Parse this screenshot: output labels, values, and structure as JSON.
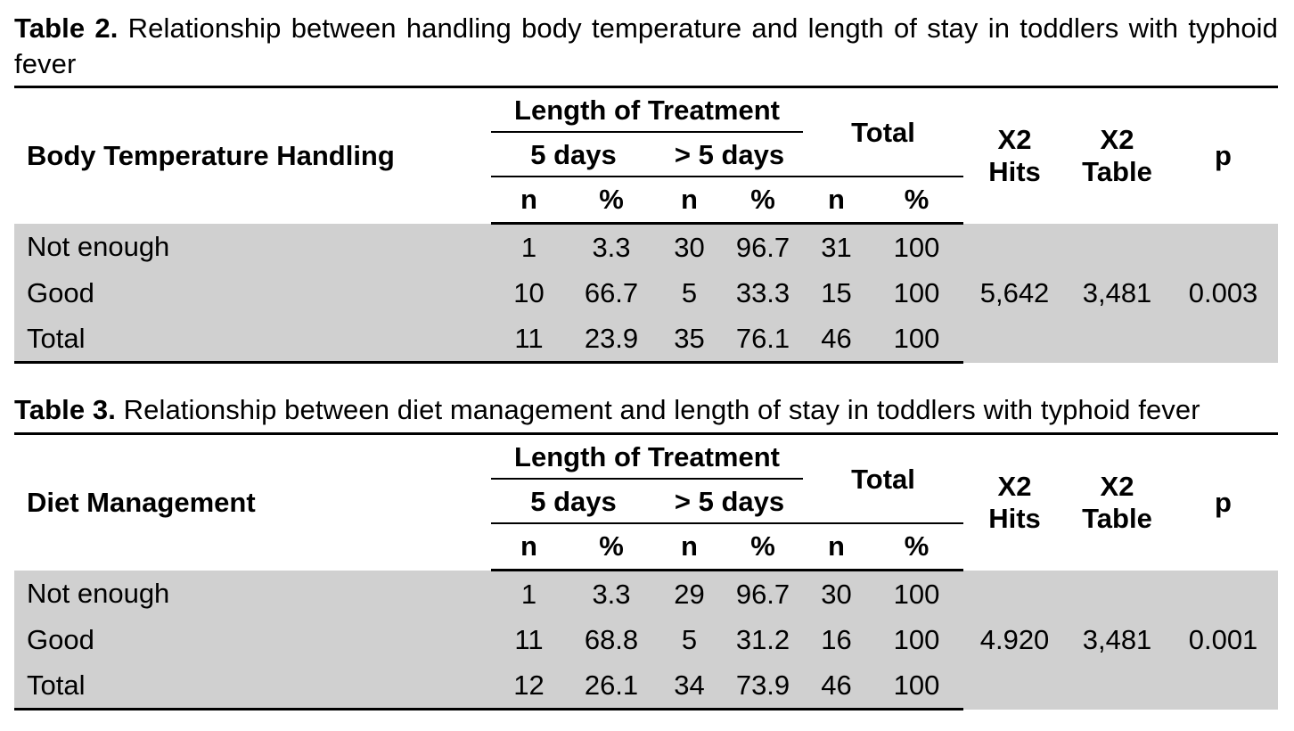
{
  "tables": [
    {
      "caption_label": "Table 2.",
      "caption_text": " Relationship between handling body temperature and length of stay in toddlers with typhoid fever",
      "row_header": "Body Temperature Handling",
      "group_header": "Length of Treatment",
      "sub_headers": [
        "5 days",
        "> 5 days"
      ],
      "total_header": "Total",
      "x2_hits_header": [
        "X2",
        "Hits"
      ],
      "x2_table_header": [
        "X2",
        "Table"
      ],
      "p_header": "p",
      "stat_headers": [
        "n",
        "%",
        "n",
        "%",
        "n",
        "%"
      ],
      "rows": [
        {
          "label": "Not enough",
          "cells": [
            "1",
            "3.3",
            "30",
            "96.7",
            "31",
            "100"
          ]
        },
        {
          "label": "Good",
          "cells": [
            "10",
            "66.7",
            "5",
            "33.3",
            "15",
            "100"
          ]
        },
        {
          "label": "Total",
          "cells": [
            "11",
            "23.9",
            "35",
            "76.1",
            "46",
            "100"
          ]
        }
      ],
      "x2_hits": "5,642",
      "x2_table": "3,481",
      "p": "0.003"
    },
    {
      "caption_label": "Table 3.",
      "caption_text": " Relationship between diet management and length of stay in toddlers with typhoid fever",
      "row_header": "Diet Management",
      "group_header": "Length of Treatment",
      "sub_headers": [
        "5 days",
        "> 5 days"
      ],
      "total_header": "Total",
      "x2_hits_header": [
        "X2",
        "Hits"
      ],
      "x2_table_header": [
        "X2",
        "Table"
      ],
      "p_header": "p",
      "stat_headers": [
        "n",
        "%",
        "n",
        "%",
        "n",
        "%"
      ],
      "rows": [
        {
          "label": "Not enough",
          "cells": [
            "1",
            "3.3",
            "29",
            "96.7",
            "30",
            "100"
          ]
        },
        {
          "label": "Good",
          "cells": [
            "11",
            "68.8",
            "5",
            "31.2",
            "16",
            "100"
          ]
        },
        {
          "label": "Total",
          "cells": [
            "12",
            "26.1",
            "34",
            "73.9",
            "46",
            "100"
          ]
        }
      ],
      "x2_hits": "4.920",
      "x2_table": "3,481",
      "p": "0.001"
    }
  ]
}
